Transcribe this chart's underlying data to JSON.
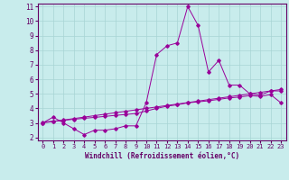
{
  "xlabel": "Windchill (Refroidissement éolien,°C)",
  "background_color": "#c8ecec",
  "grid_color": "#a8d4d4",
  "line_color": "#990099",
  "spine_color": "#660066",
  "xlim": [
    -0.5,
    23.5
  ],
  "ylim": [
    1.8,
    11.2
  ],
  "yticks": [
    2,
    3,
    4,
    5,
    6,
    7,
    8,
    9,
    10,
    11
  ],
  "xticks": [
    0,
    1,
    2,
    3,
    4,
    5,
    6,
    7,
    8,
    9,
    10,
    11,
    12,
    13,
    14,
    15,
    16,
    17,
    18,
    19,
    20,
    21,
    22,
    23
  ],
  "series1_x": [
    0,
    1,
    2,
    3,
    4,
    5,
    6,
    7,
    8,
    9,
    10,
    11,
    12,
    13,
    14,
    15,
    16,
    17,
    18,
    19,
    20,
    21,
    22,
    23
  ],
  "series1_y": [
    3.0,
    3.4,
    3.0,
    2.6,
    2.2,
    2.5,
    2.5,
    2.6,
    2.8,
    2.8,
    4.4,
    7.7,
    8.3,
    8.5,
    11.0,
    9.7,
    6.5,
    7.3,
    5.6,
    5.6,
    5.0,
    4.9,
    5.2,
    5.2
  ],
  "series2_x": [
    0,
    1,
    2,
    3,
    4,
    5,
    6,
    7,
    8,
    9,
    10,
    11,
    12,
    13,
    14,
    15,
    16,
    17,
    18,
    19,
    20,
    21,
    22,
    23
  ],
  "series2_y": [
    3.0,
    3.1,
    3.2,
    3.3,
    3.4,
    3.5,
    3.6,
    3.7,
    3.8,
    3.9,
    4.0,
    4.1,
    4.2,
    4.3,
    4.4,
    4.5,
    4.6,
    4.7,
    4.8,
    4.9,
    5.0,
    5.1,
    5.2,
    5.3
  ],
  "series3_x": [
    0,
    1,
    2,
    3,
    4,
    5,
    6,
    7,
    8,
    9,
    10,
    11,
    12,
    13,
    14,
    15,
    16,
    17,
    18,
    19,
    20,
    21,
    22,
    23
  ],
  "series3_y": [
    3.05,
    3.12,
    3.18,
    3.25,
    3.32,
    3.38,
    3.45,
    3.52,
    3.58,
    3.65,
    3.82,
    4.0,
    4.15,
    4.25,
    4.38,
    4.45,
    4.52,
    4.62,
    4.72,
    4.78,
    4.88,
    4.82,
    4.95,
    4.38
  ]
}
